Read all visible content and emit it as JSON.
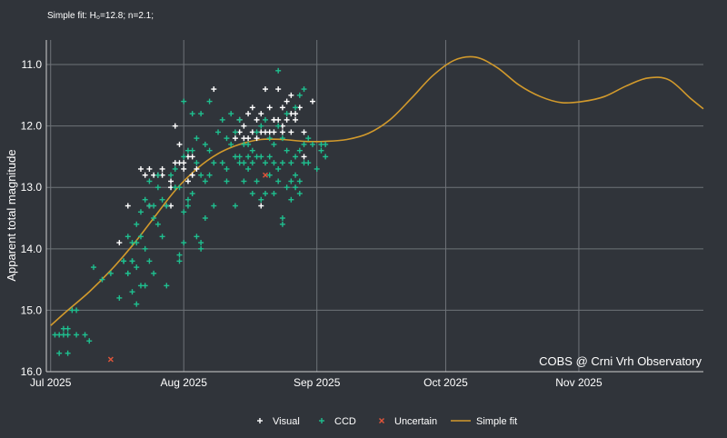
{
  "chart_data": {
    "type": "scatter",
    "subtitle": "Simple fit: H₀=12.8; n=2.1;",
    "ylabel": "Apparent total magnitude",
    "xlabel": "",
    "x_axis": "date",
    "y_inverted": true,
    "xlim": [
      "2025-06-30",
      "2025-11-30"
    ],
    "ylim": [
      16.0,
      10.6
    ],
    "x_ticks": [
      {
        "date": "2025-07-01",
        "label": "Jul 2025"
      },
      {
        "date": "2025-08-01",
        "label": "Aug 2025"
      },
      {
        "date": "2025-09-01",
        "label": "Sep 2025"
      },
      {
        "date": "2025-10-01",
        "label": "Oct 2025"
      },
      {
        "date": "2025-11-01",
        "label": "Nov 2025"
      }
    ],
    "y_ticks": [
      11.0,
      12.0,
      13.0,
      14.0,
      15.0,
      16.0
    ],
    "y_tick_labels": [
      "11.0",
      "12.0",
      "13.0",
      "14.0",
      "15.0",
      "16.0"
    ],
    "grid": true,
    "legend_position": "bottom",
    "credit": "COBS @ Crni Vrh Observatory",
    "colors": {
      "background": "#30343a",
      "visual": "#ffffff",
      "ccd": "#1fbf8f",
      "uncertain": "#e0553a",
      "fit": "#d29a2c"
    },
    "series": [
      {
        "name": "Visual",
        "marker": "plus",
        "points": [
          [
            "2025-07-17",
            13.9
          ],
          [
            "2025-07-19",
            13.3
          ],
          [
            "2025-07-22",
            12.7
          ],
          [
            "2025-07-23",
            12.8
          ],
          [
            "2025-07-24",
            12.7
          ],
          [
            "2025-07-24",
            13.3
          ],
          [
            "2025-07-25",
            12.8
          ],
          [
            "2025-07-26",
            12.8
          ],
          [
            "2025-07-27",
            12.7
          ],
          [
            "2025-07-27",
            12.8
          ],
          [
            "2025-07-28",
            13.3
          ],
          [
            "2025-07-29",
            13.3
          ],
          [
            "2025-07-29",
            13.0
          ],
          [
            "2025-07-29",
            12.9
          ],
          [
            "2025-07-30",
            12.6
          ],
          [
            "2025-07-30",
            12.0
          ],
          [
            "2025-07-31",
            12.3
          ],
          [
            "2025-07-31",
            12.6
          ],
          [
            "2025-08-01",
            12.6
          ],
          [
            "2025-08-01",
            12.7
          ],
          [
            "2025-08-02",
            12.5
          ],
          [
            "2025-08-02",
            12.9
          ],
          [
            "2025-08-03",
            12.5
          ],
          [
            "2025-08-03",
            12.8
          ],
          [
            "2025-08-04",
            12.7
          ],
          [
            "2025-08-08",
            11.4
          ],
          [
            "2025-08-13",
            12.2
          ],
          [
            "2025-08-14",
            12.1
          ],
          [
            "2025-08-14",
            11.9
          ],
          [
            "2025-08-15",
            12.2
          ],
          [
            "2025-08-15",
            12.0
          ],
          [
            "2025-08-16",
            11.8
          ],
          [
            "2025-08-16",
            12.2
          ],
          [
            "2025-08-17",
            11.7
          ],
          [
            "2025-08-17",
            12.1
          ],
          [
            "2025-08-18",
            12.2
          ],
          [
            "2025-08-18",
            11.9
          ],
          [
            "2025-08-19",
            12.1
          ],
          [
            "2025-08-19",
            11.8
          ],
          [
            "2025-08-19",
            13.3
          ],
          [
            "2025-08-20",
            11.4
          ],
          [
            "2025-08-20",
            12.1
          ],
          [
            "2025-08-21",
            12.1
          ],
          [
            "2025-08-21",
            11.7
          ],
          [
            "2025-08-22",
            12.1
          ],
          [
            "2025-08-22",
            11.9
          ],
          [
            "2025-08-22",
            11.9
          ],
          [
            "2025-08-23",
            11.4
          ],
          [
            "2025-08-23",
            11.9
          ],
          [
            "2025-08-24",
            12.0
          ],
          [
            "2025-08-24",
            12.1
          ],
          [
            "2025-08-24",
            11.7
          ],
          [
            "2025-08-25",
            11.6
          ],
          [
            "2025-08-25",
            11.9
          ],
          [
            "2025-08-26",
            11.8
          ],
          [
            "2025-08-26",
            11.5
          ],
          [
            "2025-08-26",
            12.1
          ],
          [
            "2025-08-27",
            11.8
          ],
          [
            "2025-08-27",
            11.9
          ],
          [
            "2025-08-28",
            11.7
          ],
          [
            "2025-08-29",
            12.1
          ],
          [
            "2025-08-29",
            12.5
          ],
          [
            "2025-08-31",
            11.6
          ]
        ]
      },
      {
        "name": "CCD",
        "marker": "plus",
        "points": [
          [
            "2025-07-02",
            15.4
          ],
          [
            "2025-07-03",
            15.4
          ],
          [
            "2025-07-03",
            15.7
          ],
          [
            "2025-07-04",
            15.3
          ],
          [
            "2025-07-04",
            15.4
          ],
          [
            "2025-07-05",
            15.3
          ],
          [
            "2025-07-05",
            15.7
          ],
          [
            "2025-07-05",
            15.4
          ],
          [
            "2025-07-06",
            15.0
          ],
          [
            "2025-07-07",
            15.0
          ],
          [
            "2025-07-07",
            15.4
          ],
          [
            "2025-07-09",
            15.4
          ],
          [
            "2025-07-10",
            15.5
          ],
          [
            "2025-07-11",
            14.3
          ],
          [
            "2025-07-13",
            14.5
          ],
          [
            "2025-07-15",
            14.4
          ],
          [
            "2025-07-17",
            14.8
          ],
          [
            "2025-07-18",
            14.2
          ],
          [
            "2025-07-18",
            14.2
          ],
          [
            "2025-07-19",
            14.4
          ],
          [
            "2025-07-19",
            14.4
          ],
          [
            "2025-07-19",
            13.8
          ],
          [
            "2025-07-20",
            13.9
          ],
          [
            "2025-07-20",
            14.2
          ],
          [
            "2025-07-20",
            14.7
          ],
          [
            "2025-07-20",
            14.2
          ],
          [
            "2025-07-21",
            14.9
          ],
          [
            "2025-07-21",
            13.9
          ],
          [
            "2025-07-21",
            13.6
          ],
          [
            "2025-07-21",
            14.3
          ],
          [
            "2025-07-22",
            14.6
          ],
          [
            "2025-07-22",
            13.4
          ],
          [
            "2025-07-22",
            13.8
          ],
          [
            "2025-07-23",
            13.2
          ],
          [
            "2025-07-23",
            14.0
          ],
          [
            "2025-07-23",
            14.6
          ],
          [
            "2025-07-24",
            13.3
          ],
          [
            "2025-07-24",
            12.9
          ],
          [
            "2025-07-24",
            14.2
          ],
          [
            "2025-07-25",
            13.3
          ],
          [
            "2025-07-25",
            14.4
          ],
          [
            "2025-07-25",
            13.5
          ],
          [
            "2025-07-26",
            12.8
          ],
          [
            "2025-07-26",
            13.0
          ],
          [
            "2025-07-26",
            13.6
          ],
          [
            "2025-07-27",
            13.8
          ],
          [
            "2025-07-27",
            13.2
          ],
          [
            "2025-07-28",
            14.6
          ],
          [
            "2025-07-28",
            13.3
          ],
          [
            "2025-07-29",
            12.8
          ],
          [
            "2025-07-30",
            12.7
          ],
          [
            "2025-07-30",
            13.0
          ],
          [
            "2025-07-31",
            14.2
          ],
          [
            "2025-07-31",
            13.0
          ],
          [
            "2025-07-31",
            14.1
          ],
          [
            "2025-08-01",
            13.9
          ],
          [
            "2025-08-01",
            11.6
          ],
          [
            "2025-08-01",
            12.5
          ],
          [
            "2025-08-01",
            13.4
          ],
          [
            "2025-08-02",
            13.2
          ],
          [
            "2025-08-02",
            13.3
          ],
          [
            "2025-08-02",
            12.4
          ],
          [
            "2025-08-03",
            12.4
          ],
          [
            "2025-08-03",
            13.1
          ],
          [
            "2025-08-03",
            11.8
          ],
          [
            "2025-08-04",
            13.8
          ],
          [
            "2025-08-04",
            12.6
          ],
          [
            "2025-08-04",
            12.2
          ],
          [
            "2025-08-05",
            13.9
          ],
          [
            "2025-08-05",
            14.0
          ],
          [
            "2025-08-05",
            12.8
          ],
          [
            "2025-08-05",
            11.8
          ],
          [
            "2025-08-06",
            12.9
          ],
          [
            "2025-08-06",
            13.5
          ],
          [
            "2025-08-06",
            12.3
          ],
          [
            "2025-08-07",
            12.8
          ],
          [
            "2025-08-07",
            12.4
          ],
          [
            "2025-08-07",
            11.6
          ],
          [
            "2025-08-08",
            13.3
          ],
          [
            "2025-08-08",
            12.6
          ],
          [
            "2025-08-09",
            12.1
          ],
          [
            "2025-08-10",
            12.6
          ],
          [
            "2025-08-10",
            11.9
          ],
          [
            "2025-08-11",
            12.2
          ],
          [
            "2025-08-11",
            12.7
          ],
          [
            "2025-08-11",
            12.9
          ],
          [
            "2025-08-12",
            12.3
          ],
          [
            "2025-08-12",
            11.8
          ],
          [
            "2025-08-13",
            12.5
          ],
          [
            "2025-08-13",
            13.3
          ],
          [
            "2025-08-13",
            12.1
          ],
          [
            "2025-08-14",
            12.5
          ],
          [
            "2025-08-14",
            11.9
          ],
          [
            "2025-08-14",
            12.6
          ],
          [
            "2025-08-15",
            12.9
          ],
          [
            "2025-08-15",
            12.3
          ],
          [
            "2025-08-15",
            12.6
          ],
          [
            "2025-08-16",
            12.7
          ],
          [
            "2025-08-16",
            12.3
          ],
          [
            "2025-08-16",
            12.5
          ],
          [
            "2025-08-17",
            12.6
          ],
          [
            "2025-08-17",
            12.4
          ],
          [
            "2025-08-17",
            13.1
          ],
          [
            "2025-08-18",
            12.5
          ],
          [
            "2025-08-18",
            12.9
          ],
          [
            "2025-08-18",
            12.1
          ],
          [
            "2025-08-19",
            13.2
          ],
          [
            "2025-08-19",
            12.5
          ],
          [
            "2025-08-19",
            12.0
          ],
          [
            "2025-08-20",
            12.6
          ],
          [
            "2025-08-20",
            13.1
          ],
          [
            "2025-08-20",
            11.9
          ],
          [
            "2025-08-21",
            12.2
          ],
          [
            "2025-08-21",
            12.5
          ],
          [
            "2025-08-21",
            12.8
          ],
          [
            "2025-08-22",
            13.1
          ],
          [
            "2025-08-22",
            12.6
          ],
          [
            "2025-08-22",
            12.3
          ],
          [
            "2025-08-23",
            12.9
          ],
          [
            "2025-08-23",
            12.7
          ],
          [
            "2025-08-23",
            12.0
          ],
          [
            "2025-08-23",
            11.1
          ],
          [
            "2025-08-24",
            13.6
          ],
          [
            "2025-08-24",
            12.6
          ],
          [
            "2025-08-24",
            13.5
          ],
          [
            "2025-08-24",
            12.2
          ],
          [
            "2025-08-25",
            13.0
          ],
          [
            "2025-08-25",
            12.4
          ],
          [
            "2025-08-25",
            11.8
          ],
          [
            "2025-08-26",
            12.9
          ],
          [
            "2025-08-26",
            13.2
          ],
          [
            "2025-08-26",
            12.6
          ],
          [
            "2025-08-27",
            12.8
          ],
          [
            "2025-08-27",
            12.5
          ],
          [
            "2025-08-27",
            13.0
          ],
          [
            "2025-08-27",
            11.7
          ],
          [
            "2025-08-28",
            12.9
          ],
          [
            "2025-08-28",
            12.4
          ],
          [
            "2025-08-28",
            13.1
          ],
          [
            "2025-08-28",
            11.5
          ],
          [
            "2025-08-29",
            12.3
          ],
          [
            "2025-08-29",
            12.6
          ],
          [
            "2025-08-29",
            11.4
          ],
          [
            "2025-08-30",
            12.6
          ],
          [
            "2025-08-30",
            12.2
          ],
          [
            "2025-08-31",
            12.3
          ],
          [
            "2025-09-01",
            12.7
          ],
          [
            "2025-09-02",
            12.4
          ],
          [
            "2025-09-02",
            12.3
          ],
          [
            "2025-09-03",
            12.5
          ],
          [
            "2025-09-03",
            12.3
          ]
        ]
      },
      {
        "name": "Uncertain",
        "marker": "x",
        "points": [
          [
            "2025-07-15",
            15.8
          ],
          [
            "2025-08-20",
            12.8
          ]
        ]
      },
      {
        "name": "Simple fit",
        "marker": "line",
        "points": [
          [
            "2025-07-01",
            15.25
          ],
          [
            "2025-07-05",
            15.0
          ],
          [
            "2025-07-10",
            14.7
          ],
          [
            "2025-07-15",
            14.35
          ],
          [
            "2025-07-20",
            13.95
          ],
          [
            "2025-07-25",
            13.5
          ],
          [
            "2025-07-30",
            13.05
          ],
          [
            "2025-08-04",
            12.7
          ],
          [
            "2025-08-09",
            12.45
          ],
          [
            "2025-08-14",
            12.3
          ],
          [
            "2025-08-19",
            12.22
          ],
          [
            "2025-08-24",
            12.22
          ],
          [
            "2025-08-29",
            12.25
          ],
          [
            "2025-09-03",
            12.25
          ],
          [
            "2025-09-08",
            12.22
          ],
          [
            "2025-09-13",
            12.12
          ],
          [
            "2025-09-18",
            11.9
          ],
          [
            "2025-09-23",
            11.55
          ],
          [
            "2025-09-28",
            11.18
          ],
          [
            "2025-10-03",
            10.93
          ],
          [
            "2025-10-08",
            10.88
          ],
          [
            "2025-10-13",
            11.05
          ],
          [
            "2025-10-18",
            11.33
          ],
          [
            "2025-10-23",
            11.52
          ],
          [
            "2025-10-28",
            11.62
          ],
          [
            "2025-11-02",
            11.6
          ],
          [
            "2025-11-07",
            11.52
          ],
          [
            "2025-11-12",
            11.35
          ],
          [
            "2025-11-17",
            11.22
          ],
          [
            "2025-11-22",
            11.25
          ],
          [
            "2025-11-27",
            11.55
          ],
          [
            "2025-11-30",
            11.72
          ]
        ]
      }
    ]
  }
}
